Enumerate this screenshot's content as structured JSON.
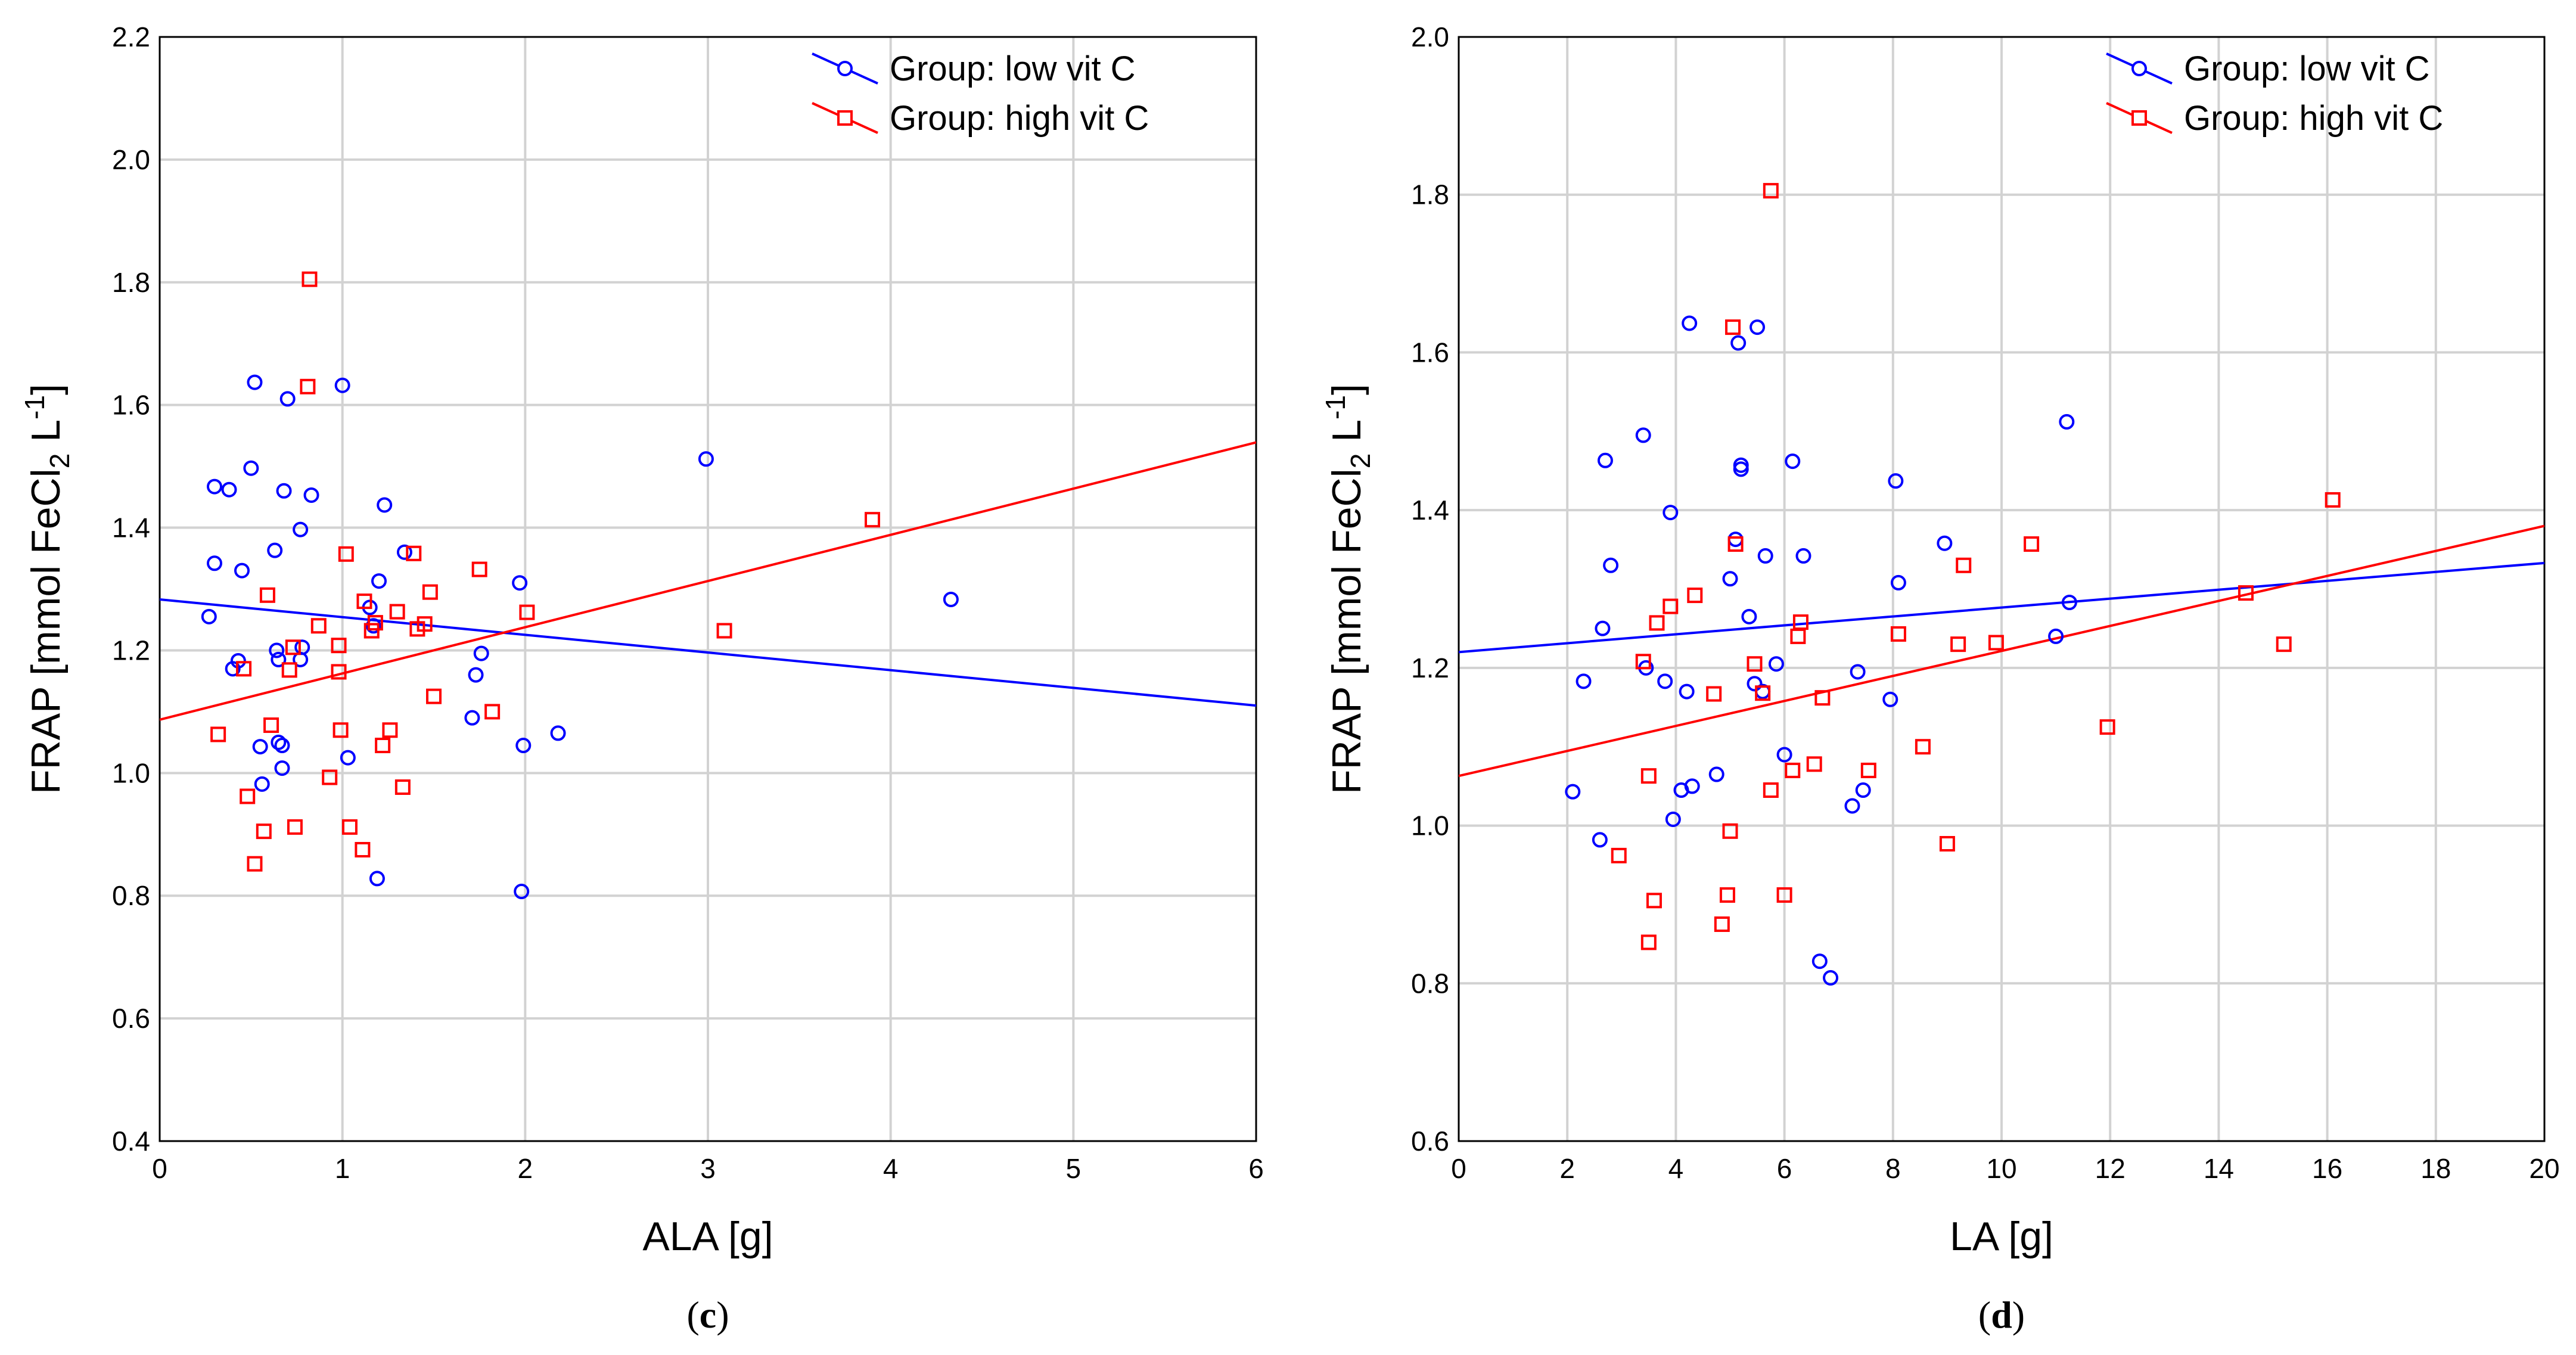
{
  "chart_data": [
    {
      "type": "scatter",
      "panel": "c",
      "xlabel": "ALA [g]",
      "ylabel": "FRAP [mmol FeCl2 L-1]",
      "ylabel_parts": {
        "main": "FRAP [mmol FeCl",
        "sub": "2",
        "mid": " L",
        "sup": "-1",
        "end": "]"
      },
      "xlim": [
        0,
        6
      ],
      "ylim": [
        0.4,
        2.2
      ],
      "xticks": [
        "0",
        "1",
        "2",
        "3",
        "4",
        "5",
        "6"
      ],
      "yticks": [
        "0.4",
        "0.6",
        "0.8",
        "1.0",
        "1.2",
        "1.4",
        "1.6",
        "1.8",
        "2.0",
        "2.2"
      ],
      "legend_position": "top-right",
      "grid": true,
      "series": [
        {
          "name": "Group: low vit C",
          "color": "#0000ff",
          "marker": "circle",
          "fit": [
            [
              0,
              1.283
            ],
            [
              6,
              1.11
            ]
          ],
          "points": [
            [
              0.27,
              1.255
            ],
            [
              0.3,
              1.467
            ],
            [
              0.3,
              1.342
            ],
            [
              0.38,
              1.462
            ],
            [
              0.4,
              1.17
            ],
            [
              0.43,
              1.183
            ],
            [
              0.45,
              1.33
            ],
            [
              0.5,
              1.497
            ],
            [
              0.52,
              1.637
            ],
            [
              0.55,
              1.043
            ],
            [
              0.56,
              0.982
            ],
            [
              0.63,
              1.363
            ],
            [
              0.64,
              1.2
            ],
            [
              0.65,
              1.185
            ],
            [
              0.65,
              1.05
            ],
            [
              0.67,
              1.045
            ],
            [
              0.67,
              1.008
            ],
            [
              0.68,
              1.46
            ],
            [
              0.7,
              1.61
            ],
            [
              0.77,
              1.397
            ],
            [
              0.77,
              1.185
            ],
            [
              0.78,
              1.205
            ],
            [
              0.83,
              1.453
            ],
            [
              1.0,
              1.632
            ],
            [
              1.03,
              1.025
            ],
            [
              1.15,
              1.27
            ],
            [
              1.17,
              1.24
            ],
            [
              1.19,
              0.828
            ],
            [
              1.2,
              1.313
            ],
            [
              1.23,
              1.437
            ],
            [
              1.34,
              1.36
            ],
            [
              1.71,
              1.09
            ],
            [
              1.73,
              1.16
            ],
            [
              1.76,
              1.195
            ],
            [
              1.97,
              1.31
            ],
            [
              1.98,
              0.807
            ],
            [
              1.99,
              1.045
            ],
            [
              2.18,
              1.065
            ],
            [
              2.99,
              1.512
            ],
            [
              4.33,
              1.283
            ]
          ]
        },
        {
          "name": "Group: high vit C",
          "color": "#ff0000",
          "marker": "square",
          "fit": [
            [
              0,
              1.087
            ],
            [
              6,
              1.539
            ]
          ],
          "points": [
            [
              0.32,
              1.063
            ],
            [
              0.46,
              1.17
            ],
            [
              0.48,
              0.962
            ],
            [
              0.52,
              0.852
            ],
            [
              0.57,
              0.905
            ],
            [
              0.59,
              1.29
            ],
            [
              0.61,
              1.078
            ],
            [
              0.71,
              1.168
            ],
            [
              0.73,
              1.205
            ],
            [
              0.74,
              0.912
            ],
            [
              0.81,
              1.63
            ],
            [
              0.82,
              1.805
            ],
            [
              0.87,
              1.24
            ],
            [
              0.93,
              0.993
            ],
            [
              0.98,
              1.208
            ],
            [
              0.98,
              1.165
            ],
            [
              0.99,
              1.07
            ],
            [
              1.02,
              1.357
            ],
            [
              1.04,
              0.912
            ],
            [
              1.11,
              0.875
            ],
            [
              1.12,
              1.28
            ],
            [
              1.16,
              1.232
            ],
            [
              1.18,
              1.245
            ],
            [
              1.22,
              1.045
            ],
            [
              1.26,
              1.07
            ],
            [
              1.3,
              1.263
            ],
            [
              1.33,
              0.977
            ],
            [
              1.39,
              1.358
            ],
            [
              1.41,
              1.235
            ],
            [
              1.45,
              1.243
            ],
            [
              1.48,
              1.295
            ],
            [
              1.5,
              1.125
            ],
            [
              1.75,
              1.332
            ],
            [
              1.82,
              1.1
            ],
            [
              2.01,
              1.262
            ],
            [
              3.09,
              1.232
            ],
            [
              3.9,
              1.413
            ]
          ]
        }
      ]
    },
    {
      "type": "scatter",
      "panel": "d",
      "xlabel": "LA [g]",
      "ylabel": "FRAP [mmol FeCl2 L-1]",
      "ylabel_parts": {
        "main": "FRAP [mmol FeCl",
        "sub": "2",
        "mid": " L",
        "sup": "-1",
        "end": "]"
      },
      "xlim": [
        0,
        20
      ],
      "ylim": [
        0.6,
        2.0
      ],
      "xticks": [
        "0",
        "2",
        "4",
        "6",
        "8",
        "10",
        "12",
        "14",
        "16",
        "18",
        "20"
      ],
      "yticks": [
        "0.6",
        "0.8",
        "1.0",
        "1.2",
        "1.4",
        "1.6",
        "1.8",
        "2.0"
      ],
      "legend_position": "top-right",
      "grid": true,
      "series": [
        {
          "name": "Group: low vit C",
          "color": "#0000ff",
          "marker": "circle",
          "fit": [
            [
              0,
              1.22
            ],
            [
              20,
              1.333
            ]
          ],
          "points": [
            [
              2.1,
              1.043
            ],
            [
              2.3,
              1.183
            ],
            [
              2.6,
              0.982
            ],
            [
              2.65,
              1.25
            ],
            [
              2.7,
              1.463
            ],
            [
              2.8,
              1.33
            ],
            [
              3.4,
              1.495
            ],
            [
              3.45,
              1.2
            ],
            [
              3.8,
              1.183
            ],
            [
              3.9,
              1.397
            ],
            [
              3.95,
              1.008
            ],
            [
              4.1,
              1.045
            ],
            [
              4.2,
              1.17
            ],
            [
              4.25,
              1.637
            ],
            [
              4.3,
              1.05
            ],
            [
              4.75,
              1.065
            ],
            [
              5.0,
              1.313
            ],
            [
              5.1,
              1.363
            ],
            [
              5.15,
              1.612
            ],
            [
              5.2,
              1.457
            ],
            [
              5.2,
              1.452
            ],
            [
              5.35,
              1.265
            ],
            [
              5.45,
              1.18
            ],
            [
              5.5,
              1.632
            ],
            [
              5.6,
              1.17
            ],
            [
              5.65,
              1.342
            ],
            [
              5.85,
              1.205
            ],
            [
              6.0,
              1.09
            ],
            [
              6.15,
              1.462
            ],
            [
              6.35,
              1.342
            ],
            [
              6.65,
              0.828
            ],
            [
              6.85,
              0.807
            ],
            [
              7.25,
              1.025
            ],
            [
              7.35,
              1.195
            ],
            [
              7.45,
              1.045
            ],
            [
              7.95,
              1.16
            ],
            [
              8.05,
              1.437
            ],
            [
              8.1,
              1.308
            ],
            [
              8.95,
              1.358
            ],
            [
              11.0,
              1.24
            ],
            [
              11.2,
              1.512
            ],
            [
              11.25,
              1.283
            ]
          ]
        },
        {
          "name": "Group: high vit C",
          "color": "#ff0000",
          "marker": "square",
          "fit": [
            [
              0,
              1.063
            ],
            [
              20,
              1.38
            ]
          ],
          "points": [
            [
              2.95,
              0.962
            ],
            [
              3.4,
              1.208
            ],
            [
              3.5,
              1.063
            ],
            [
              3.5,
              0.852
            ],
            [
              3.6,
              0.905
            ],
            [
              3.65,
              1.257
            ],
            [
              3.9,
              1.278
            ],
            [
              4.35,
              1.292
            ],
            [
              4.7,
              1.167
            ],
            [
              4.85,
              0.875
            ],
            [
              4.95,
              0.912
            ],
            [
              5.0,
              0.993
            ],
            [
              5.05,
              1.632
            ],
            [
              5.1,
              1.357
            ],
            [
              5.45,
              1.205
            ],
            [
              5.6,
              1.168
            ],
            [
              5.75,
              1.805
            ],
            [
              5.75,
              1.045
            ],
            [
              6.0,
              0.912
            ],
            [
              6.15,
              1.07
            ],
            [
              6.25,
              1.24
            ],
            [
              6.3,
              1.258
            ],
            [
              6.55,
              1.078
            ],
            [
              6.7,
              1.162
            ],
            [
              7.55,
              1.07
            ],
            [
              8.1,
              1.243
            ],
            [
              8.55,
              1.1
            ],
            [
              9.0,
              0.977
            ],
            [
              9.2,
              1.23
            ],
            [
              9.3,
              1.33
            ],
            [
              9.9,
              1.232
            ],
            [
              10.55,
              1.357
            ],
            [
              11.95,
              1.125
            ],
            [
              14.5,
              1.295
            ],
            [
              15.2,
              1.23
            ],
            [
              16.1,
              1.413
            ]
          ]
        }
      ]
    }
  ]
}
